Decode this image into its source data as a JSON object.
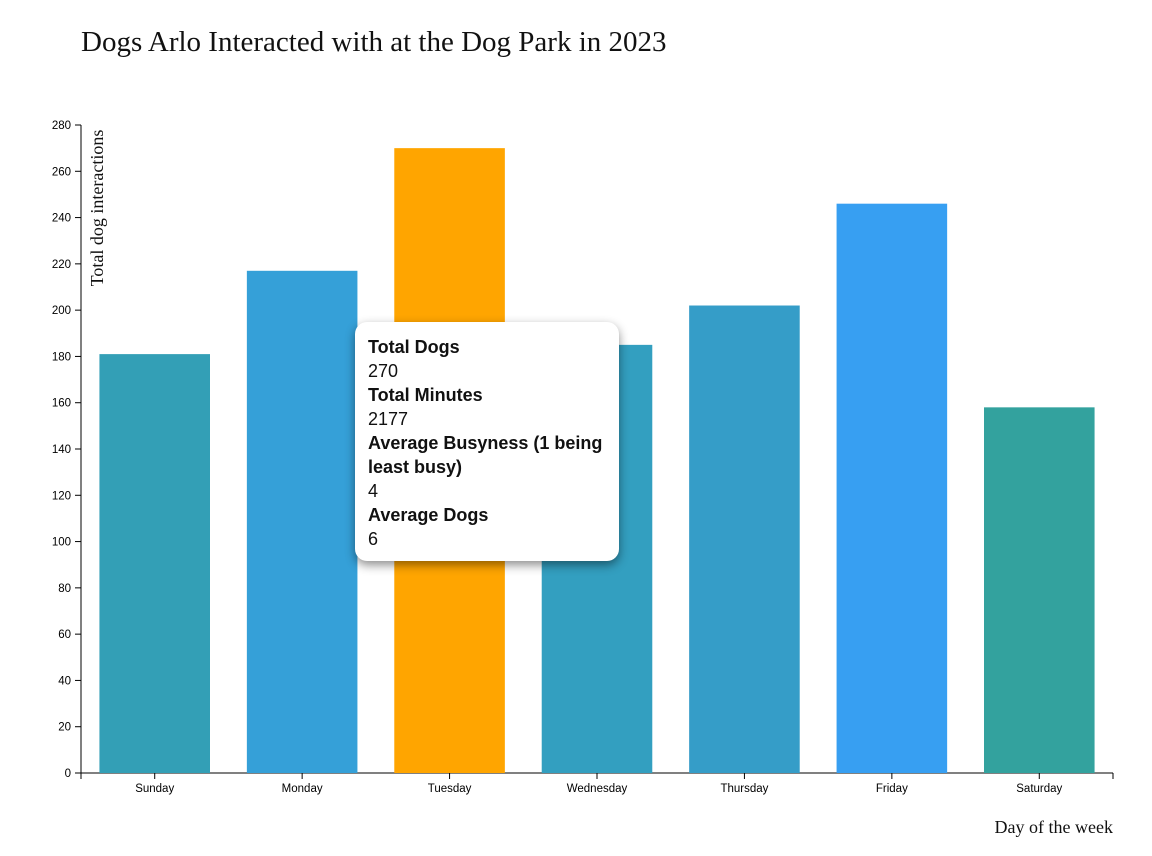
{
  "chart_data": {
    "type": "bar",
    "title": "Dogs Arlo Interacted with at the Dog Park in 2023",
    "xlabel": "Day of the week",
    "ylabel": "Total dog interactions",
    "categories": [
      "Sunday",
      "Monday",
      "Tuesday",
      "Wednesday",
      "Thursday",
      "Friday",
      "Saturday"
    ],
    "values": [
      181,
      217,
      270,
      185,
      202,
      246,
      158
    ],
    "colors": [
      "#339fb6",
      "#35a0d8",
      "#ffa500",
      "#339fc0",
      "#359dc8",
      "#379ff2",
      "#33a29e"
    ],
    "ylim": [
      0,
      280
    ],
    "yticks": [
      0,
      20,
      40,
      60,
      80,
      100,
      120,
      140,
      160,
      180,
      200,
      220,
      240,
      260,
      280
    ],
    "grid": false,
    "highlighted_category": "Tuesday"
  },
  "tooltip": {
    "total_dogs_label": "Total Dogs",
    "total_dogs_value": "270",
    "total_minutes_label": "Total Minutes",
    "total_minutes_value": "2177",
    "avg_busyness_label": "Average Busyness (1 being least busy)",
    "avg_busyness_value": "4",
    "avg_dogs_label": "Average Dogs",
    "avg_dogs_value": "6"
  }
}
